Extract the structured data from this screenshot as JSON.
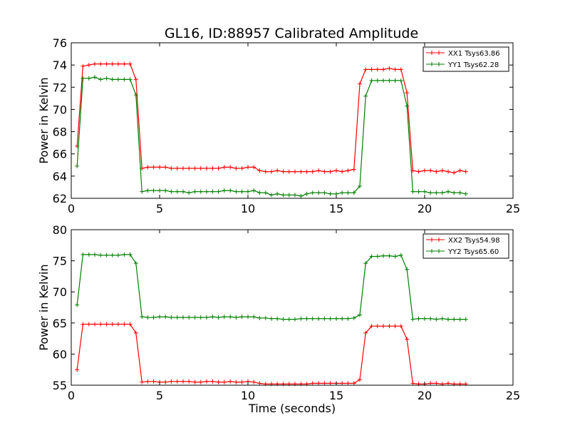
{
  "chart_data": [
    {
      "type": "line",
      "title": "GL16, ID:88957 Calibrated Amplitude",
      "ylabel": "Power in Kelvin",
      "xlabel": "",
      "xlim": [
        0,
        25
      ],
      "ylim": [
        62,
        76
      ],
      "xticks": [
        "0",
        "5",
        "10",
        "15",
        "20",
        "25"
      ],
      "yticks": [
        "62",
        "64",
        "66",
        "68",
        "70",
        "72",
        "74",
        "76"
      ],
      "legend_position": "top-right",
      "grid": false,
      "x": [
        0.33,
        0.66,
        1.0,
        1.33,
        1.66,
        2.0,
        2.33,
        2.66,
        3.0,
        3.33,
        3.66,
        4.0,
        4.33,
        4.66,
        5.0,
        5.33,
        5.66,
        6.0,
        6.33,
        6.66,
        7.0,
        7.33,
        7.66,
        8.0,
        8.33,
        8.66,
        9.0,
        9.33,
        9.66,
        10.0,
        10.33,
        10.66,
        11.0,
        11.33,
        11.66,
        12.0,
        12.33,
        12.66,
        13.0,
        13.33,
        13.66,
        14.0,
        14.33,
        14.66,
        15.0,
        15.33,
        15.66,
        16.0,
        16.33,
        16.66,
        17.0,
        17.33,
        17.66,
        18.0,
        18.33,
        18.66,
        19.0,
        19.33,
        19.66,
        20.0,
        20.33,
        20.66,
        21.0,
        21.33,
        21.66,
        22.0,
        22.33
      ],
      "series": [
        {
          "name": "XX1 Tsys63.86",
          "color": "#ff0000",
          "values": [
            66.7,
            73.9,
            74.0,
            74.1,
            74.1,
            74.1,
            74.1,
            74.1,
            74.1,
            74.1,
            72.7,
            64.7,
            64.8,
            64.8,
            64.8,
            64.8,
            64.7,
            64.7,
            64.7,
            64.7,
            64.7,
            64.7,
            64.7,
            64.7,
            64.7,
            64.8,
            64.8,
            64.7,
            64.7,
            64.8,
            64.8,
            64.5,
            64.4,
            64.4,
            64.5,
            64.4,
            64.4,
            64.4,
            64.4,
            64.4,
            64.4,
            64.5,
            64.4,
            64.4,
            64.5,
            64.4,
            64.5,
            64.6,
            72.3,
            73.6,
            73.6,
            73.6,
            73.6,
            73.7,
            73.6,
            73.6,
            71.5,
            64.5,
            64.4,
            64.5,
            64.5,
            64.4,
            64.5,
            64.4,
            64.3,
            64.5,
            64.4
          ]
        },
        {
          "name": "YY1 Tsys62.28",
          "color": "#008000",
          "values": [
            64.9,
            72.8,
            72.8,
            72.9,
            72.7,
            72.8,
            72.7,
            72.7,
            72.7,
            72.7,
            71.3,
            62.6,
            62.7,
            62.7,
            62.7,
            62.7,
            62.6,
            62.6,
            62.6,
            62.5,
            62.6,
            62.6,
            62.6,
            62.6,
            62.6,
            62.7,
            62.7,
            62.6,
            62.6,
            62.6,
            62.7,
            62.5,
            62.5,
            62.3,
            62.4,
            62.3,
            62.3,
            62.3,
            62.2,
            62.4,
            62.5,
            62.5,
            62.5,
            62.4,
            62.4,
            62.5,
            62.5,
            62.5,
            63.1,
            71.2,
            72.6,
            72.6,
            72.6,
            72.6,
            72.6,
            72.6,
            70.3,
            62.6,
            62.6,
            62.6,
            62.5,
            62.5,
            62.5,
            62.6,
            62.5,
            62.5,
            62.4
          ]
        }
      ]
    },
    {
      "type": "line",
      "title": "",
      "ylabel": "Power in Kelvin",
      "xlabel": "Time (seconds)",
      "xlim": [
        0,
        25
      ],
      "ylim": [
        55,
        80
      ],
      "xticks": [
        "0",
        "5",
        "10",
        "15",
        "20",
        "25"
      ],
      "yticks": [
        "55",
        "60",
        "65",
        "70",
        "75",
        "80"
      ],
      "legend_position": "top-right",
      "grid": false,
      "x": [
        0.33,
        0.66,
        1.0,
        1.33,
        1.66,
        2.0,
        2.33,
        2.66,
        3.0,
        3.33,
        3.66,
        4.0,
        4.33,
        4.66,
        5.0,
        5.33,
        5.66,
        6.0,
        6.33,
        6.66,
        7.0,
        7.33,
        7.66,
        8.0,
        8.33,
        8.66,
        9.0,
        9.33,
        9.66,
        10.0,
        10.33,
        10.66,
        11.0,
        11.33,
        11.66,
        12.0,
        12.33,
        12.66,
        13.0,
        13.33,
        13.66,
        14.0,
        14.33,
        14.66,
        15.0,
        15.33,
        15.66,
        16.0,
        16.33,
        16.66,
        17.0,
        17.33,
        17.66,
        18.0,
        18.33,
        18.66,
        19.0,
        19.33,
        19.66,
        20.0,
        20.33,
        20.66,
        21.0,
        21.33,
        21.66,
        22.0,
        22.33
      ],
      "series": [
        {
          "name": "XX2 Tsys54.98",
          "color": "#ff0000",
          "values": [
            57.5,
            64.8,
            64.8,
            64.8,
            64.8,
            64.8,
            64.8,
            64.8,
            64.8,
            64.8,
            63.4,
            55.5,
            55.6,
            55.6,
            55.5,
            55.5,
            55.6,
            55.6,
            55.6,
            55.6,
            55.5,
            55.5,
            55.6,
            55.6,
            55.5,
            55.5,
            55.6,
            55.5,
            55.5,
            55.6,
            55.5,
            55.3,
            55.2,
            55.2,
            55.2,
            55.2,
            55.2,
            55.2,
            55.2,
            55.2,
            55.3,
            55.3,
            55.3,
            55.3,
            55.3,
            55.3,
            55.3,
            55.3,
            55.9,
            63.4,
            64.5,
            64.5,
            64.5,
            64.5,
            64.5,
            64.5,
            62.4,
            55.3,
            55.2,
            55.2,
            55.3,
            55.3,
            55.2,
            55.3,
            55.2,
            55.2,
            55.2
          ]
        },
        {
          "name": "YY2 Tsys65.60",
          "color": "#008000",
          "values": [
            67.9,
            76.0,
            76.0,
            76.0,
            75.9,
            75.9,
            75.9,
            75.9,
            76.0,
            76.0,
            74.6,
            66.0,
            65.9,
            65.9,
            66.0,
            66.0,
            65.9,
            65.9,
            65.9,
            65.9,
            65.9,
            65.9,
            65.9,
            66.0,
            65.9,
            66.0,
            66.0,
            65.9,
            66.0,
            66.0,
            66.0,
            65.8,
            65.8,
            65.7,
            65.7,
            65.6,
            65.6,
            65.6,
            65.7,
            65.7,
            65.7,
            65.7,
            65.7,
            65.7,
            65.7,
            65.7,
            65.7,
            65.8,
            66.3,
            74.6,
            75.7,
            75.7,
            75.8,
            75.8,
            75.7,
            75.9,
            73.6,
            65.6,
            65.7,
            65.7,
            65.7,
            65.6,
            65.7,
            65.6,
            65.6,
            65.6,
            65.6
          ]
        }
      ]
    }
  ]
}
